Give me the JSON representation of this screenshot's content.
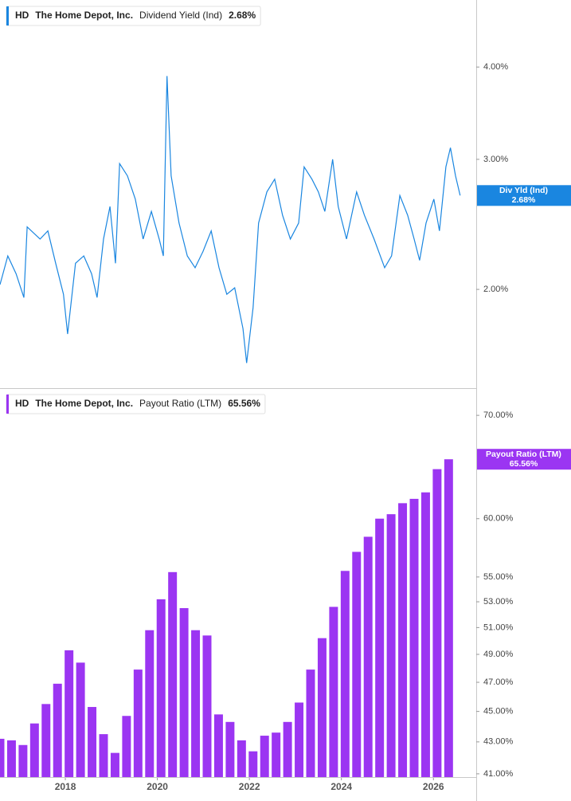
{
  "chart_data": [
    {
      "type": "line",
      "ticker": "HD",
      "company": "The Home Depot, Inc.",
      "series": [
        {
          "name": "Dividend Yield (Ind)",
          "color": "#1a86e0",
          "values": [
            2.03,
            2.22,
            2.1,
            1.95,
            2.43,
            2.34,
            2.4,
            2.17,
            1.97,
            1.74,
            2.17,
            2.22,
            2.1,
            1.95,
            2.34,
            2.59,
            2.17,
            2.96,
            2.85,
            2.65,
            2.34,
            2.55,
            2.34,
            2.22,
            3.89,
            2.85,
            2.46,
            2.22,
            2.14,
            2.25,
            2.4,
            2.14,
            1.97,
            2.01,
            1.77,
            1.59,
            1.89,
            2.46,
            2.71,
            2.82,
            2.52,
            2.34,
            2.46,
            2.93,
            2.82,
            2.71,
            2.55,
            3.0,
            2.59,
            2.34,
            2.71,
            2.52,
            2.34,
            2.14,
            2.22,
            2.68,
            2.52,
            2.34,
            2.19,
            2.46,
            2.65,
            2.4,
            2.93,
            3.11,
            2.85,
            2.68
          ]
        }
      ],
      "x": [
        2016.58,
        2016.75,
        2016.93,
        2017.1,
        2017.17,
        2017.45,
        2017.62,
        2017.79,
        2017.96,
        2018.05,
        2018.22,
        2018.4,
        2018.57,
        2018.69,
        2018.83,
        2018.97,
        2019.09,
        2019.18,
        2019.35,
        2019.52,
        2019.69,
        2019.87,
        2020.04,
        2020.13,
        2020.21,
        2020.3,
        2020.47,
        2020.65,
        2020.82,
        2020.99,
        2021.17,
        2021.34,
        2021.51,
        2021.68,
        2021.86,
        2021.94,
        2022.08,
        2022.2,
        2022.38,
        2022.55,
        2022.72,
        2022.89,
        2023.07,
        2023.19,
        2023.36,
        2023.5,
        2023.64,
        2023.81,
        2023.93,
        2024.11,
        2024.33,
        2024.5,
        2024.71,
        2024.94,
        2025.09,
        2025.27,
        2025.44,
        2025.58,
        2025.7,
        2025.84,
        2026.01,
        2026.13,
        2026.27,
        2026.37,
        2026.48,
        2026.58
      ],
      "current": {
        "name": "Div Yld (Ind)",
        "value": 2.68,
        "label": "2.68%"
      },
      "xlim": [
        2016.58,
        2026.93
      ],
      "ylim": [
        1.47,
        4.93
      ],
      "log_y": true,
      "yticks": [
        {
          "value": 4,
          "label": "4.00%"
        },
        {
          "value": 3,
          "label": "3.00%"
        },
        {
          "value": 2,
          "label": "2.00%"
        }
      ]
    },
    {
      "type": "bar",
      "ticker": "HD",
      "company": "The Home Depot, Inc.",
      "series": [
        {
          "name": "Payout Ratio (LTM)",
          "color": "#9b35f2",
          "values": [
            43.2,
            43.1,
            42.8,
            44.2,
            45.5,
            46.9,
            49.3,
            48.4,
            45.3,
            43.5,
            42.3,
            44.7,
            47.9,
            50.8,
            53.2,
            55.4,
            52.5,
            50.8,
            50.4,
            44.8,
            44.3,
            43.1,
            42.4,
            43.4,
            43.6,
            44.3,
            45.6,
            47.9,
            50.2,
            52.6,
            55.5,
            57.1,
            58.4,
            60.0,
            60.4,
            61.4,
            61.8,
            62.4,
            64.6,
            65.56
          ]
        }
      ],
      "x": [
        2016.58,
        2016.83,
        2017.08,
        2017.33,
        2017.58,
        2017.83,
        2018.08,
        2018.33,
        2018.58,
        2018.83,
        2019.08,
        2019.33,
        2019.58,
        2019.83,
        2020.08,
        2020.33,
        2020.58,
        2020.83,
        2021.08,
        2021.33,
        2021.58,
        2021.83,
        2022.08,
        2022.33,
        2022.58,
        2022.83,
        2023.08,
        2023.33,
        2023.58,
        2023.83,
        2024.08,
        2024.33,
        2024.58,
        2024.83,
        2025.08,
        2025.33,
        2025.58,
        2025.83,
        2026.08,
        2026.33
      ],
      "current": {
        "name": "Payout Ratio (LTM)",
        "value": 65.56,
        "label": "65.56%"
      },
      "xlim": [
        2016.58,
        2026.93
      ],
      "xticks": [
        2018,
        2020,
        2022,
        2024,
        2026
      ],
      "ylim": [
        40.8,
        72.9
      ],
      "log_y": true,
      "yticks": [
        {
          "value": 70,
          "label": "70.00%"
        },
        {
          "value": 60,
          "label": "60.00%"
        },
        {
          "value": 55,
          "label": "55.00%"
        },
        {
          "value": 53,
          "label": "53.00%"
        },
        {
          "value": 51,
          "label": "51.00%"
        },
        {
          "value": 49,
          "label": "49.00%"
        },
        {
          "value": 47,
          "label": "47.00%"
        },
        {
          "value": 45,
          "label": "45.00%"
        },
        {
          "value": 43,
          "label": "43.00%"
        },
        {
          "value": 41,
          "label": "41.00%"
        }
      ]
    }
  ]
}
